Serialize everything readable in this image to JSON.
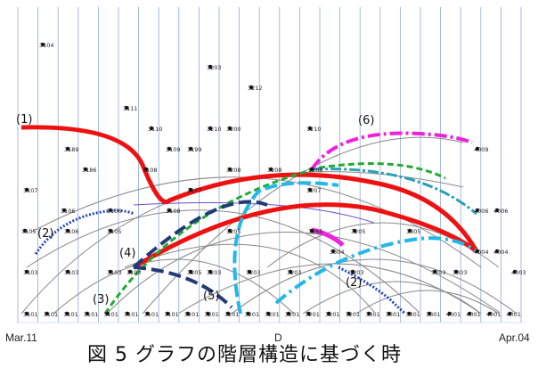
{
  "caption": "図 5 グラフの階層構造に基づく時",
  "axis": {
    "start": "Mar.11",
    "end": "Apr.04",
    "middle": "D"
  },
  "colors": {
    "red": "#ee1111",
    "blue": "#2244bb",
    "green": "#22aa33",
    "cyan": "#22b8e8",
    "magenta": "#ee22dd",
    "navy": "#223a77",
    "gray": "#888888",
    "column": "#8eaad8"
  },
  "group_labels": [
    "(1)",
    "(2)",
    "(3)",
    "(4)",
    "(5)",
    "(6)",
    "(2)"
  ],
  "nodes": [
    "3104",
    "3203",
    "3212",
    "3111",
    "3110",
    "3210",
    "3200",
    "3210",
    "3189",
    "3109",
    "3199",
    "3108",
    "3186",
    "3208",
    "3208",
    "3208",
    "4009",
    "3107",
    "3107",
    "3207",
    "3106",
    "3106",
    "3108",
    "4006",
    "4006",
    "3105",
    "3106",
    "3105",
    "3205",
    "3265",
    "3205",
    "3305",
    "4004",
    "3304",
    "4004",
    "3103",
    "3103",
    "3103",
    "3103",
    "3205",
    "3203",
    "3203",
    "3203",
    "3203",
    "3303",
    "3303",
    "4003",
    "3101",
    "3101",
    "3101",
    "3101",
    "3101",
    "3101",
    "3101",
    "3101",
    "3201",
    "3201",
    "3201",
    "3201",
    "3201",
    "3201",
    "3201",
    "3201",
    "3201",
    "3301",
    "3301",
    "3301",
    "3301",
    "4001",
    "4001",
    "4001",
    "4001"
  ]
}
